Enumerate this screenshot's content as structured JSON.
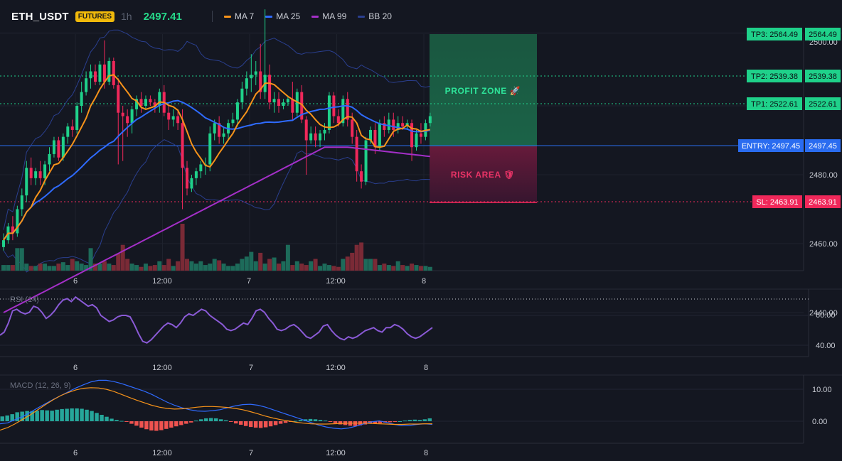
{
  "header": {
    "symbol": "ETH_USDT",
    "badge": "FUTURES",
    "timeframe": "1h",
    "last_price": "2497.41",
    "indicators": [
      {
        "label": "MA 7",
        "color": "#f7931a"
      },
      {
        "label": "MA 25",
        "color": "#2f6bff"
      },
      {
        "label": "MA 99",
        "color": "#a42fc8"
      },
      {
        "label": "BB 20",
        "color": "#2a3f8f"
      }
    ]
  },
  "colors": {
    "up": "#1fd18a",
    "down": "#f0285a",
    "background": "#141721",
    "entry": "#2a6cf0",
    "tp": "#1fd18a",
    "sl": "#f0285a"
  },
  "x_axis_labels": [
    "6",
    "12:00",
    "7",
    "12:00",
    "8"
  ],
  "levels": {
    "tp3": "TP3: 2564.49",
    "tp3_value": "2564.49",
    "axis_top": "2500.00",
    "tp2": "TP2: 2539.38",
    "tp2_value": "2539.38",
    "tp1": "TP1: 2522.61",
    "tp1_value": "2522.61",
    "entry": "ENTRY: 2497.45",
    "entry_value": "2497.45",
    "sl": "SL: 2463.91",
    "sl_value": "2463.91"
  },
  "zones": {
    "profit": "PROFIT ZONE 🚀",
    "risk": "RISK AREA 🛡"
  },
  "rsi_panel": {
    "title": "RSI (14)",
    "ticks": [
      "60.00",
      "40.00"
    ]
  },
  "macd_panel": {
    "title": "MACD (12, 26, 9)",
    "ticks": [
      "10.00",
      "0.00"
    ]
  },
  "chart_data": [
    {
      "type": "candlestick",
      "title": "ETH_USDT 1h",
      "y_ticks": [
        2500,
        2480,
        2460,
        2440
      ],
      "ylim": [
        2428,
        2531
      ],
      "volume_as_fraction_of_max": [
        0.12,
        0.12,
        0.12,
        0.48,
        0.48,
        0.15,
        0.1,
        0.1,
        0.15,
        0.15,
        0.1,
        0.1,
        0.15,
        0.18,
        0.12,
        0.25,
        0.2,
        0.15,
        0.12,
        0.48,
        0.15,
        0.15,
        0.2,
        0.15,
        0.12,
        0.36,
        0.55,
        0.25,
        0.15,
        0.12,
        0.08,
        0.15,
        0.1,
        0.12,
        0.2,
        0.12,
        0.25,
        0.1,
        0.2,
        1.0,
        0.25,
        0.2,
        0.15,
        0.2,
        0.12,
        0.15,
        0.25,
        0.22,
        0.15,
        0.1,
        0.1,
        0.15,
        0.25,
        0.3,
        0.4,
        0.2,
        0.38,
        0.15,
        0.25,
        0.28,
        0.15,
        0.2,
        0.55,
        0.12,
        0.2,
        0.15,
        0.12,
        0.2,
        0.25,
        0.1,
        0.15,
        0.12,
        0.1,
        0.08,
        0.25,
        0.3,
        0.38,
        0.55,
        0.6,
        0.25,
        0.25,
        0.25,
        0.12,
        0.15,
        0.12,
        0.1,
        0.2,
        0.12,
        0.1,
        0.15,
        0.12,
        0.1,
        0.1,
        0.08
      ],
      "candles": [
        {
          "o": 2459,
          "h": 2463,
          "c": 2461,
          "l": 2458
        },
        {
          "o": 2461,
          "h": 2466,
          "c": 2465,
          "l": 2460
        },
        {
          "o": 2465,
          "h": 2468,
          "c": 2463,
          "l": 2461
        },
        {
          "o": 2463,
          "h": 2471,
          "c": 2470,
          "l": 2462
        },
        {
          "o": 2470,
          "h": 2476,
          "c": 2474,
          "l": 2468
        },
        {
          "o": 2474,
          "h": 2484,
          "c": 2482,
          "l": 2472
        },
        {
          "o": 2482,
          "h": 2485,
          "c": 2479,
          "l": 2477
        },
        {
          "o": 2479,
          "h": 2482,
          "c": 2481,
          "l": 2477
        },
        {
          "o": 2481,
          "h": 2484,
          "c": 2479,
          "l": 2477
        },
        {
          "o": 2479,
          "h": 2484,
          "c": 2483,
          "l": 2477
        },
        {
          "o": 2483,
          "h": 2488,
          "c": 2486,
          "l": 2481
        },
        {
          "o": 2486,
          "h": 2491,
          "c": 2490,
          "l": 2485
        },
        {
          "o": 2490,
          "h": 2491,
          "c": 2485,
          "l": 2484
        },
        {
          "o": 2485,
          "h": 2492,
          "c": 2491,
          "l": 2484
        },
        {
          "o": 2491,
          "h": 2495,
          "c": 2494,
          "l": 2489
        },
        {
          "o": 2494,
          "h": 2496,
          "c": 2493,
          "l": 2491
        },
        {
          "o": 2493,
          "h": 2501,
          "c": 2500,
          "l": 2492
        },
        {
          "o": 2500,
          "h": 2507,
          "c": 2504,
          "l": 2498
        },
        {
          "o": 2504,
          "h": 2510,
          "c": 2508,
          "l": 2503
        },
        {
          "o": 2508,
          "h": 2512,
          "c": 2510,
          "l": 2505
        },
        {
          "o": 2510,
          "h": 2512,
          "c": 2507,
          "l": 2506
        },
        {
          "o": 2507,
          "h": 2513,
          "c": 2512,
          "l": 2506
        },
        {
          "o": 2512,
          "h": 2519,
          "c": 2507,
          "l": 2505
        },
        {
          "o": 2507,
          "h": 2514,
          "c": 2513,
          "l": 2506
        },
        {
          "o": 2513,
          "h": 2514,
          "c": 2506,
          "l": 2505
        },
        {
          "o": 2506,
          "h": 2508,
          "c": 2498,
          "l": 2483
        },
        {
          "o": 2498,
          "h": 2500,
          "c": 2497,
          "l": 2484
        },
        {
          "o": 2497,
          "h": 2499,
          "c": 2495,
          "l": 2491
        },
        {
          "o": 2495,
          "h": 2500,
          "c": 2499,
          "l": 2492
        },
        {
          "o": 2499,
          "h": 2503,
          "c": 2502,
          "l": 2497
        },
        {
          "o": 2502,
          "h": 2504,
          "c": 2500,
          "l": 2498
        },
        {
          "o": 2500,
          "h": 2503,
          "c": 2502,
          "l": 2499
        },
        {
          "o": 2502,
          "h": 2503,
          "c": 2501,
          "l": 2500
        },
        {
          "o": 2501,
          "h": 2502,
          "c": 2500,
          "l": 2498
        },
        {
          "o": 2500,
          "h": 2505,
          "c": 2504,
          "l": 2498
        },
        {
          "o": 2504,
          "h": 2506,
          "c": 2498,
          "l": 2497
        },
        {
          "o": 2498,
          "h": 2500,
          "c": 2496,
          "l": 2493
        },
        {
          "o": 2496,
          "h": 2499,
          "c": 2497,
          "l": 2494
        },
        {
          "o": 2497,
          "h": 2499,
          "c": 2495,
          "l": 2493
        },
        {
          "o": 2495,
          "h": 2499,
          "c": 2482,
          "l": 2470
        },
        {
          "o": 2482,
          "h": 2484,
          "c": 2476,
          "l": 2474
        },
        {
          "o": 2476,
          "h": 2480,
          "c": 2479,
          "l": 2475
        },
        {
          "o": 2479,
          "h": 2482,
          "c": 2481,
          "l": 2477
        },
        {
          "o": 2481,
          "h": 2484,
          "c": 2483,
          "l": 2479
        },
        {
          "o": 2483,
          "h": 2485,
          "c": 2483,
          "l": 2480
        },
        {
          "o": 2483,
          "h": 2494,
          "c": 2492,
          "l": 2481
        },
        {
          "o": 2492,
          "h": 2496,
          "c": 2495,
          "l": 2490
        },
        {
          "o": 2495,
          "h": 2497,
          "c": 2491,
          "l": 2489
        },
        {
          "o": 2491,
          "h": 2494,
          "c": 2492,
          "l": 2489
        },
        {
          "o": 2492,
          "h": 2496,
          "c": 2495,
          "l": 2490
        },
        {
          "o": 2495,
          "h": 2498,
          "c": 2496,
          "l": 2494
        },
        {
          "o": 2496,
          "h": 2502,
          "c": 2501,
          "l": 2494
        },
        {
          "o": 2501,
          "h": 2507,
          "c": 2505,
          "l": 2499
        },
        {
          "o": 2505,
          "h": 2510,
          "c": 2508,
          "l": 2503
        },
        {
          "o": 2508,
          "h": 2515,
          "c": 2509,
          "l": 2504
        },
        {
          "o": 2509,
          "h": 2513,
          "c": 2510,
          "l": 2506
        },
        {
          "o": 2510,
          "h": 2518,
          "c": 2504,
          "l": 2502
        },
        {
          "o": 2504,
          "h": 2528,
          "c": 2509,
          "l": 2502
        },
        {
          "o": 2509,
          "h": 2512,
          "c": 2501,
          "l": 2499
        },
        {
          "o": 2501,
          "h": 2504,
          "c": 2502,
          "l": 2498
        },
        {
          "o": 2502,
          "h": 2504,
          "c": 2500,
          "l": 2498
        },
        {
          "o": 2500,
          "h": 2502,
          "c": 2501,
          "l": 2499
        },
        {
          "o": 2501,
          "h": 2503,
          "c": 2502,
          "l": 2500
        },
        {
          "o": 2502,
          "h": 2507,
          "c": 2498,
          "l": 2496
        },
        {
          "o": 2498,
          "h": 2505,
          "c": 2504,
          "l": 2497
        },
        {
          "o": 2504,
          "h": 2506,
          "c": 2496,
          "l": 2495
        },
        {
          "o": 2496,
          "h": 2497,
          "c": 2490,
          "l": 2480
        },
        {
          "o": 2490,
          "h": 2494,
          "c": 2492,
          "l": 2489
        },
        {
          "o": 2492,
          "h": 2494,
          "c": 2490,
          "l": 2488
        },
        {
          "o": 2490,
          "h": 2493,
          "c": 2492,
          "l": 2488
        },
        {
          "o": 2492,
          "h": 2495,
          "c": 2493,
          "l": 2490
        },
        {
          "o": 2493,
          "h": 2504,
          "c": 2503,
          "l": 2492
        },
        {
          "o": 2503,
          "h": 2504,
          "c": 2497,
          "l": 2495
        },
        {
          "o": 2497,
          "h": 2499,
          "c": 2495,
          "l": 2494
        },
        {
          "o": 2495,
          "h": 2503,
          "c": 2502,
          "l": 2494
        },
        {
          "o": 2502,
          "h": 2504,
          "c": 2496,
          "l": 2494
        },
        {
          "o": 2496,
          "h": 2498,
          "c": 2491,
          "l": 2489
        },
        {
          "o": 2491,
          "h": 2493,
          "c": 2481,
          "l": 2478
        },
        {
          "o": 2481,
          "h": 2483,
          "c": 2478,
          "l": 2476
        },
        {
          "o": 2478,
          "h": 2491,
          "c": 2490,
          "l": 2477
        },
        {
          "o": 2490,
          "h": 2494,
          "c": 2493,
          "l": 2489
        },
        {
          "o": 2493,
          "h": 2495,
          "c": 2488,
          "l": 2486
        },
        {
          "o": 2488,
          "h": 2496,
          "c": 2495,
          "l": 2487
        },
        {
          "o": 2495,
          "h": 2497,
          "c": 2493,
          "l": 2491
        },
        {
          "o": 2493,
          "h": 2498,
          "c": 2496,
          "l": 2492
        },
        {
          "o": 2496,
          "h": 2498,
          "c": 2493,
          "l": 2491
        },
        {
          "o": 2493,
          "h": 2497,
          "c": 2495,
          "l": 2492
        },
        {
          "o": 2495,
          "h": 2497,
          "c": 2494,
          "l": 2493
        },
        {
          "o": 2494,
          "h": 2496,
          "c": 2495,
          "l": 2493
        },
        {
          "o": 2495,
          "h": 2496,
          "c": 2488,
          "l": 2484
        },
        {
          "o": 2488,
          "h": 2493,
          "c": 2492,
          "l": 2487
        },
        {
          "o": 2492,
          "h": 2495,
          "c": 2491,
          "l": 2489
        },
        {
          "o": 2491,
          "h": 2496,
          "c": 2495,
          "l": 2490
        },
        {
          "o": 2495,
          "h": 2498,
          "c": 2497,
          "l": 2494
        }
      ],
      "levels": {
        "tp3": 2564.49,
        "tp2": 2539.38,
        "tp1": 2522.61,
        "entry": 2497.45,
        "sl": 2463.91
      },
      "indicators": [
        "MA 7",
        "MA 25",
        "MA 99",
        "BB 20"
      ]
    },
    {
      "type": "line",
      "title": "RSI (14)",
      "ylim": [
        30,
        75
      ],
      "y_ticks": [
        60,
        40
      ],
      "series": [
        {
          "values": [
            47,
            49,
            55,
            63,
            64,
            62,
            61,
            62,
            66,
            65,
            62,
            58,
            60,
            63,
            67,
            70,
            71,
            69,
            72,
            70,
            68,
            66,
            67,
            65,
            60,
            58,
            56,
            57,
            59,
            60,
            60,
            59,
            54,
            48,
            43,
            42,
            44,
            47,
            50,
            53,
            55,
            54,
            52,
            55,
            59,
            61,
            60,
            62,
            64,
            63,
            60,
            58,
            56,
            54,
            51,
            50,
            51,
            53,
            55,
            54,
            58,
            63,
            64,
            62,
            58,
            55,
            51,
            50,
            51,
            53,
            54,
            52,
            49,
            46,
            45,
            47,
            49,
            53,
            54,
            50,
            47,
            45,
            44,
            46,
            45,
            46,
            48,
            50,
            51,
            52,
            50,
            49,
            52,
            52,
            54,
            53,
            51,
            48,
            46,
            45,
            46,
            48,
            50,
            52
          ]
        }
      ]
    },
    {
      "type": "bar",
      "title": "MACD (12, 26, 9)",
      "ylim": [
        -5,
        13
      ],
      "y_ticks": [
        10,
        0
      ],
      "histogram": [
        1.5,
        1.8,
        2.2,
        2.8,
        3,
        3.2,
        3.2,
        3.3,
        3.5,
        3.4,
        3.3,
        3.6,
        3.8,
        3.9,
        4,
        4,
        3.9,
        3.6,
        3.2,
        2.6,
        2,
        1.4,
        0.8,
        0.4,
        0.1,
        -0.2,
        -0.8,
        -1.4,
        -2,
        -2.5,
        -2.9,
        -3,
        -2.8,
        -2.4,
        -2,
        -1.6,
        -1.2,
        -0.8,
        -0.4,
        0.2,
        0.6,
        0.9,
        1,
        0.9,
        0.6,
        0.3,
        -0.2,
        -0.7,
        -1.1,
        -1.5,
        -1.8,
        -2,
        -2.1,
        -1.9,
        -1.6,
        -1.2,
        -0.8,
        -0.5,
        -0.2,
        0.1,
        0.4,
        0.6,
        0.7,
        0.6,
        0.4,
        0.2,
        -0.2,
        -0.6,
        -1,
        -1.2,
        -1.4,
        -1.5,
        -1.3,
        -1,
        -0.8,
        -0.7,
        -0.6,
        -0.4,
        -0.3,
        -0.2,
        0,
        0.2,
        0.4,
        0.5,
        0.4,
        0.6,
        0.9
      ],
      "series": [
        {
          "values": [
            -0.8,
            -0.5,
            0.5,
            1.5,
            2.8,
            4.2,
            5.5,
            6.8,
            8,
            9.2,
            10.4,
            11.4,
            12.3,
            12.8,
            12.8,
            12.4,
            11.8,
            11,
            10.2,
            9.4,
            8.4,
            7.2,
            6,
            5,
            4.2,
            3.6,
            3.2,
            3.1,
            3.3,
            3.6,
            4.2,
            4.8,
            5.2,
            5.3,
            5,
            4.4,
            3.6,
            2.8,
            2,
            1.2,
            0.4,
            -0.4,
            -1.2,
            -1.8,
            -2.2,
            -2.4,
            -2.1,
            -1.5,
            -0.8,
            -0.2,
            0.1,
            -0.4,
            -1,
            -1.4,
            -1.3,
            -1,
            -0.8,
            -1
          ]
        },
        {
          "values": [
            -2.8,
            -2,
            -0.8,
            0.6,
            2,
            3.6,
            5.2,
            6.7,
            8,
            9,
            9.8,
            10.3,
            10.5,
            10.4,
            10,
            9.3,
            8.4,
            7.5,
            6.6,
            5.8,
            5,
            4.4,
            4,
            3.8,
            3.9,
            4.1,
            4.4,
            4.6,
            4.6,
            4.5,
            4.3,
            4,
            3.6,
            3,
            2.3,
            1.6,
            1,
            0.5,
            0.1,
            -0.3,
            -0.6,
            -0.8,
            -0.9,
            -0.9,
            -0.8,
            -0.7,
            -0.6,
            -0.6,
            -0.6,
            -0.7,
            -0.8,
            -0.9,
            -1,
            -1,
            -0.9,
            -0.9,
            -0.8,
            -0.8
          ]
        }
      ]
    }
  ]
}
